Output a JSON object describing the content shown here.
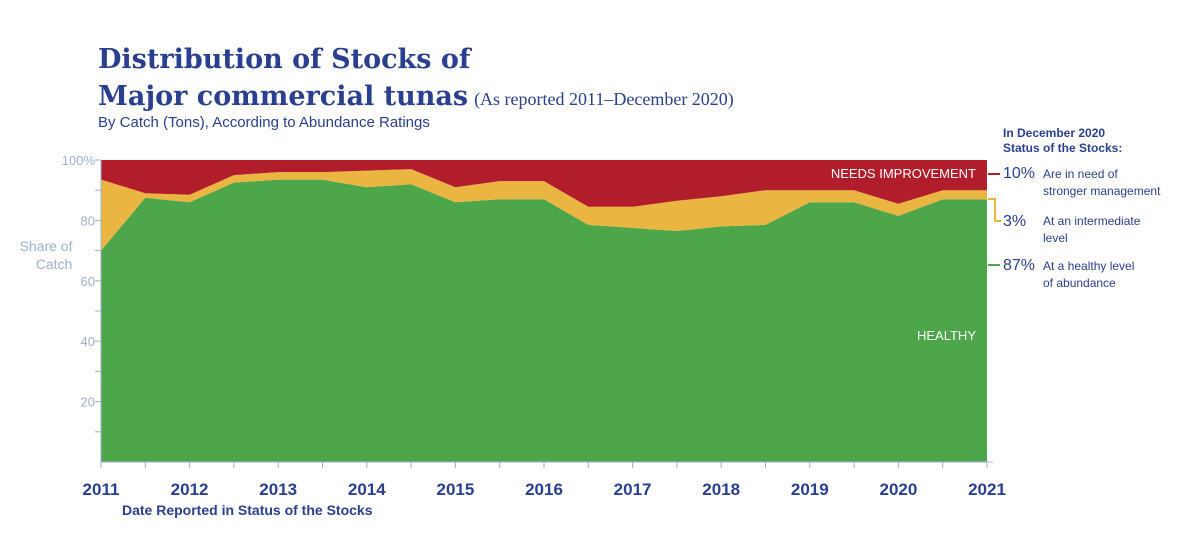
{
  "title_line1": "Distribution of Stocks of",
  "title_line2": "Major commercial tunas",
  "title_note": "(As reported 2011–December 2020)",
  "subtitle": "By Catch (Tons), According to Abundance Ratings",
  "colors": {
    "healthy": "#4ea64a",
    "intermediate": "#eab641",
    "needs_improvement": "#b21d2b",
    "text": "#2a3f8f",
    "axis": "#9fb0cc"
  },
  "chart_data": {
    "type": "area",
    "stacked": true,
    "ylabel": "Share of Catch",
    "xlabel": "Date Reported in Status of the Stocks",
    "ylim": [
      0,
      100
    ],
    "yticks": [
      "100%",
      "80",
      "60",
      "40",
      "20"
    ],
    "ytick_values": [
      100,
      80,
      60,
      40,
      20
    ],
    "xlim": [
      2011,
      2021
    ],
    "xticks": [
      "2011",
      "2012",
      "2013",
      "2014",
      "2015",
      "2016",
      "2017",
      "2018",
      "2019",
      "2020",
      "2021"
    ],
    "x": [
      2011.0,
      2011.5,
      2012.0,
      2012.5,
      2013.0,
      2013.5,
      2014.0,
      2014.5,
      2015.0,
      2015.5,
      2016.0,
      2016.5,
      2017.0,
      2017.5,
      2018.0,
      2018.5,
      2019.0,
      2019.5,
      2020.0,
      2020.5,
      2021.0
    ],
    "series": [
      {
        "name": "HEALTHY",
        "values": [
          70,
          87.5,
          86,
          92.5,
          93.5,
          93.5,
          91,
          92,
          86,
          87,
          87,
          78.5,
          77.5,
          76.5,
          78,
          78.5,
          86,
          86,
          81.5,
          87,
          87
        ]
      },
      {
        "name": "intermediate",
        "values": [
          23.5,
          1.5,
          2.5,
          2.5,
          2.5,
          2.5,
          5.5,
          5,
          5,
          6,
          6,
          6,
          7,
          10,
          10,
          11.5,
          4,
          4,
          4,
          3,
          3
        ]
      },
      {
        "name": "NEEDS IMPROVEMENT",
        "values": [
          6.5,
          11,
          11.5,
          5,
          4,
          4,
          3.5,
          3,
          9,
          7,
          7,
          15.5,
          15.5,
          13.5,
          12,
          10,
          10,
          10,
          14.5,
          10,
          10
        ]
      }
    ],
    "area_labels": {
      "healthy": "HEALTHY",
      "needs_improvement": "NEEDS IMPROVEMENT"
    },
    "legend": {
      "heading_line1": "In December 2020",
      "heading_line2": "Status of the Stocks:",
      "items": [
        {
          "pct": "10%",
          "line1": "Are in need of",
          "line2": "stronger management"
        },
        {
          "pct": "3%",
          "line1": "At an intermediate",
          "line2": "level"
        },
        {
          "pct": "87%",
          "line1": "At a healthy level",
          "line2": "of abundance"
        }
      ]
    }
  }
}
